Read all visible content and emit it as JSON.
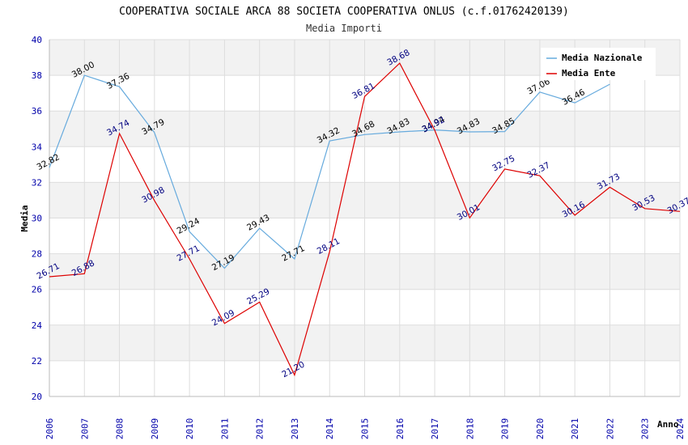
{
  "chart_data": {
    "type": "line",
    "title": "COOPERATIVA SOCIALE ARCA 88 SOCIETA COOPERATIVA ONLUS (c.f.01762420139)",
    "subtitle": "Media Importi",
    "xlabel": "Anno",
    "ylabel": "Media",
    "ylim": [
      20,
      40
    ],
    "yticks": [
      "20",
      "22",
      "24",
      "26",
      "28",
      "30",
      "32",
      "34",
      "36",
      "38",
      "40"
    ],
    "categories": [
      "2006",
      "2007",
      "2008",
      "2009",
      "2010",
      "2011",
      "2012",
      "2013",
      "2014",
      "2015",
      "2016",
      "2017",
      "2018",
      "2019",
      "2020",
      "2021",
      "2022",
      "2023",
      "2024"
    ],
    "legend_position": "top-right",
    "series": [
      {
        "name": "Media Nazionale",
        "color": "#66aadd",
        "values": [
          32.82,
          38.0,
          37.36,
          34.79,
          29.24,
          27.19,
          29.43,
          27.71,
          34.32,
          34.68,
          34.83,
          34.94,
          34.83,
          34.85,
          37.06,
          36.46,
          37.5,
          null,
          null
        ],
        "labels": [
          "32.82",
          "38.00",
          "37.36",
          "34.79",
          "29.24",
          "27.19",
          "29.43",
          "27.71",
          "34.32",
          "34.68",
          "34.83",
          "34.94",
          "34.83",
          "34.85",
          "37.06",
          "36.46",
          "",
          "",
          ""
        ]
      },
      {
        "name": "Media Ente",
        "color": "#dd0000",
        "values": [
          26.71,
          26.88,
          34.74,
          30.98,
          27.71,
          24.09,
          25.29,
          21.2,
          28.11,
          36.81,
          38.68,
          34.92,
          30.01,
          32.75,
          32.37,
          30.16,
          31.73,
          30.53,
          30.37
        ],
        "labels": [
          "26.71",
          "26.88",
          "34.74",
          "30.98",
          "27.71",
          "24.09",
          "25.29",
          "21.20",
          "28.11",
          "36.81",
          "38.68",
          "34.92",
          "30.01",
          "32.75",
          "32.37",
          "30.16",
          "31.73",
          "30.53",
          "30.37"
        ]
      }
    ]
  }
}
